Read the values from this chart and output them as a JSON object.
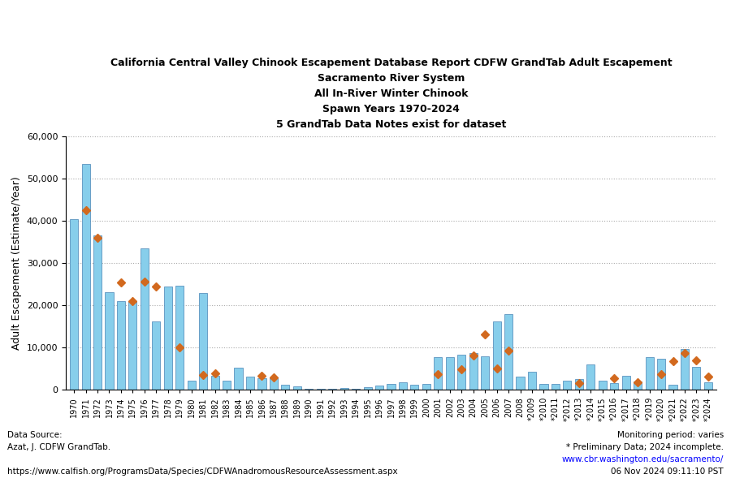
{
  "title_lines": [
    "California Central Valley Chinook Escapement Database Report CDFW GrandTab Adult Escapement",
    "Sacramento River System",
    "All In-River Winter Chinook",
    "Spawn Years 1970-2024",
    "5 GrandTab Data Notes exist for dataset"
  ],
  "ylabel": "Adult Escapement (Estimate/Year)",
  "years": [
    1970,
    1971,
    1972,
    1973,
    1974,
    1975,
    1976,
    1977,
    1978,
    1979,
    1980,
    1981,
    1982,
    1983,
    1984,
    1985,
    1986,
    1987,
    1988,
    1989,
    1990,
    1991,
    1992,
    1993,
    1994,
    1995,
    1996,
    1997,
    1998,
    1999,
    2000,
    2001,
    2002,
    2003,
    2004,
    2005,
    2006,
    2007,
    2008,
    2009,
    2010,
    2011,
    2012,
    2013,
    2014,
    2015,
    2016,
    2017,
    2018,
    2019,
    2020,
    2021,
    2022,
    2023,
    2024
  ],
  "bar_values": [
    40400,
    53500,
    36500,
    23000,
    21000,
    20900,
    33500,
    16200,
    24400,
    24700,
    2100,
    22900,
    3300,
    2200,
    5200,
    3100,
    2700,
    2900,
    1200,
    700,
    200,
    100,
    200,
    400,
    200,
    600,
    900,
    1300,
    1800,
    1100,
    1400,
    7600,
    7700,
    8300,
    8700,
    7900,
    16200,
    17900,
    3000,
    4200,
    1400,
    1300,
    2200,
    2500,
    6000,
    2100,
    1600,
    3200,
    2000,
    7600,
    7400,
    1100,
    9600,
    5400,
    1700
  ],
  "diamond_values": [
    null,
    42500,
    36000,
    null,
    25300,
    20900,
    25500,
    24500,
    null,
    10000,
    null,
    3400,
    3900,
    null,
    null,
    null,
    3200,
    2800,
    null,
    null,
    null,
    null,
    null,
    null,
    null,
    null,
    null,
    null,
    null,
    null,
    null,
    3700,
    null,
    4800,
    8000,
    13000,
    5000,
    9200,
    null,
    null,
    null,
    null,
    null,
    1600,
    null,
    null,
    2600,
    null,
    1800,
    null,
    3700,
    6700,
    8700,
    7000,
    3000
  ],
  "preliminary_years": [
    2009,
    2010,
    2011,
    2012,
    2013,
    2014,
    2015,
    2016,
    2017,
    2018,
    2019,
    2020,
    2021,
    2022,
    2023,
    2024
  ],
  "bar_color": "#87CEEB",
  "bar_edge_color": "#4682B4",
  "diamond_color": "#D2691E",
  "ylim": [
    0,
    60000
  ],
  "yticks": [
    0,
    10000,
    20000,
    30000,
    40000,
    50000,
    60000
  ],
  "grid_color": "#AAAAAA",
  "background_color": "#FFFFFF",
  "footnote_left_1": "Data Source:",
  "footnote_left_2": "Azat, J. CDFW GrandTab.",
  "footnote_left_3": "https://www.calfish.org/ProgramsData/Species/CDFWAnadromousResourceAssessment.aspx",
  "footnote_right_1": "Monitoring period: varies",
  "footnote_right_2": "* Preliminary Data; 2024 incomplete.",
  "footnote_right_3": "www.cbr.washington.edu/sacramento/",
  "footnote_right_4": "06 Nov 2024 09:11:10 PST"
}
